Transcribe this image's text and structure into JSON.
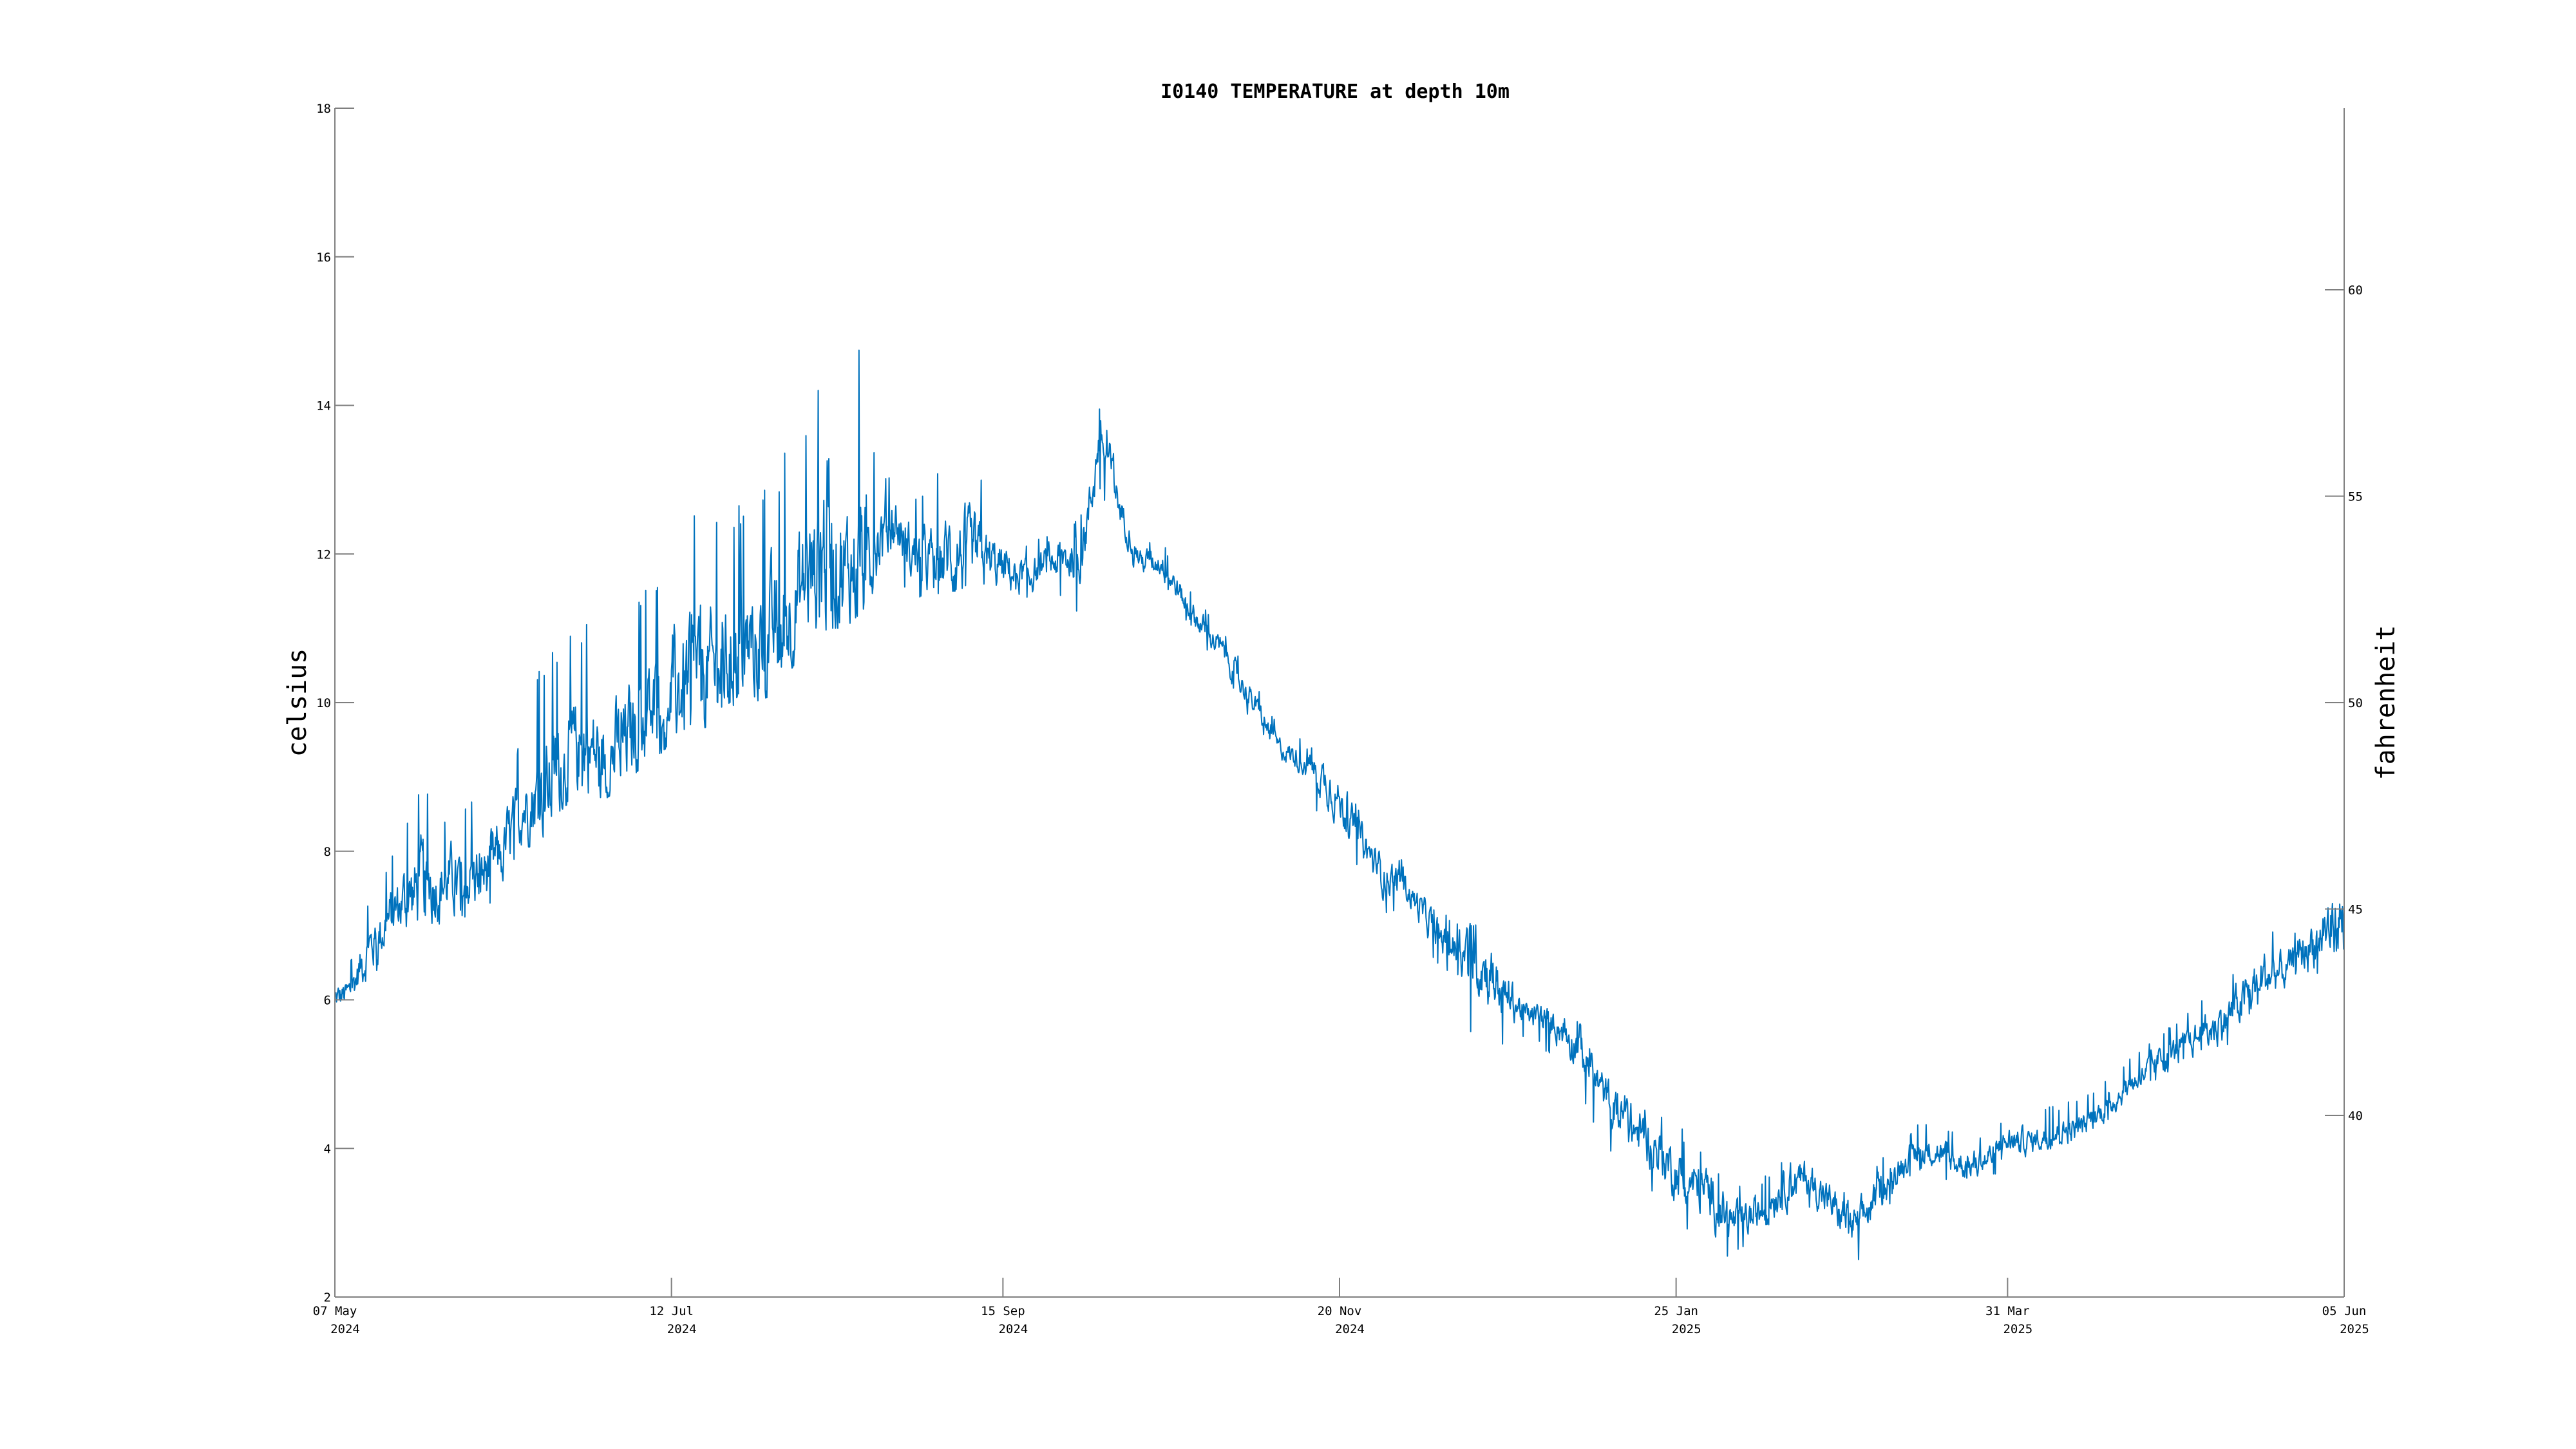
{
  "chart_data": {
    "type": "line",
    "title": "I0140 TEMPERATURE at depth 10m",
    "ylabel": "celsius",
    "y2label": "fahrenheit",
    "xlim": [
      "2024-05-07",
      "2025-06-05"
    ],
    "ylim": [
      2,
      18
    ],
    "y2lim": [
      35.6,
      64.4
    ],
    "grid": false,
    "legend": "none",
    "line_color": "#0072BD",
    "x_ticks": [
      {
        "date": "2024-05-07",
        "line1": "07 May",
        "line2": "2024"
      },
      {
        "date": "2024-07-12",
        "line1": "12 Jul",
        "line2": "2024"
      },
      {
        "date": "2024-09-15",
        "line1": "15 Sep",
        "line2": "2024"
      },
      {
        "date": "2024-11-20",
        "line1": "20 Nov",
        "line2": "2024"
      },
      {
        "date": "2025-01-25",
        "line1": "25 Jan",
        "line2": "2025"
      },
      {
        "date": "2025-03-31",
        "line1": "31 Mar",
        "line2": "2025"
      },
      {
        "date": "2025-06-05",
        "line1": "05 Jun",
        "line2": "2025"
      }
    ],
    "y_ticks": [
      2,
      4,
      6,
      8,
      10,
      12,
      14,
      16,
      18
    ],
    "y2_ticks": [
      40,
      45,
      50,
      55,
      60
    ],
    "series": [
      {
        "x": [
          "2024-05-07",
          "2024-05-10",
          "2024-05-13",
          "2024-05-17",
          "2024-05-20",
          "2024-05-24",
          "2024-05-28",
          "2024-06-01",
          "2024-06-05",
          "2024-06-09",
          "2024-06-13",
          "2024-06-17",
          "2024-06-21",
          "2024-06-25",
          "2024-06-29",
          "2024-07-03",
          "2024-07-07",
          "2024-07-12",
          "2024-07-16",
          "2024-07-20",
          "2024-07-24",
          "2024-07-28",
          "2024-08-01",
          "2024-08-05",
          "2024-08-09",
          "2024-08-12",
          "2024-08-15",
          "2024-08-18",
          "2024-08-21",
          "2024-08-25",
          "2024-08-28",
          "2024-09-01",
          "2024-09-05",
          "2024-09-09",
          "2024-09-15",
          "2024-09-20",
          "2024-09-25",
          "2024-09-30",
          "2024-10-02",
          "2024-10-04",
          "2024-10-06",
          "2024-10-08",
          "2024-10-12",
          "2024-10-16",
          "2024-10-22",
          "2024-10-28",
          "2024-11-03",
          "2024-11-08",
          "2024-11-13",
          "2024-11-18",
          "2024-11-22",
          "2024-11-28",
          "2024-12-02",
          "2024-12-07",
          "2024-12-12",
          "2024-12-17",
          "2024-12-22",
          "2024-12-27",
          "2025-01-01",
          "2025-01-06",
          "2025-01-11",
          "2025-01-16",
          "2025-01-21",
          "2025-01-26",
          "2025-01-31",
          "2025-02-05",
          "2025-02-10",
          "2025-02-15",
          "2025-02-20",
          "2025-02-25",
          "2025-03-01",
          "2025-03-06",
          "2025-03-11",
          "2025-03-16",
          "2025-03-21",
          "2025-03-26",
          "2025-03-31",
          "2025-04-05",
          "2025-04-10",
          "2025-04-15",
          "2025-04-20",
          "2025-04-25",
          "2025-04-30",
          "2025-05-05",
          "2025-05-10",
          "2025-05-15",
          "2025-05-20",
          "2025-05-25",
          "2025-05-30",
          "2025-06-05"
        ],
        "y": [
          6.0,
          6.1,
          6.6,
          7.0,
          7.3,
          7.5,
          7.6,
          7.6,
          7.7,
          8.0,
          8.6,
          8.8,
          9.2,
          9.4,
          9.2,
          9.5,
          9.8,
          10.1,
          10.3,
          10.4,
          10.6,
          10.8,
          10.9,
          11.3,
          11.8,
          12.3,
          11.7,
          11.9,
          12.2,
          12.4,
          12.0,
          11.9,
          12.0,
          12.0,
          11.8,
          11.7,
          11.9,
          12.0,
          12.6,
          13.6,
          13.2,
          12.6,
          11.9,
          11.9,
          11.2,
          10.7,
          10.0,
          9.4,
          9.2,
          8.9,
          8.4,
          7.7,
          7.6,
          7.1,
          6.7,
          6.6,
          6.1,
          5.8,
          5.7,
          5.4,
          4.7,
          4.3,
          4.0,
          3.6,
          3.4,
          3.0,
          3.1,
          3.5,
          3.6,
          3.2,
          2.9,
          3.4,
          3.9,
          4.0,
          3.8,
          3.8,
          4.1,
          4.1,
          4.2,
          4.3,
          4.6,
          4.9,
          5.2,
          5.4,
          5.6,
          5.9,
          6.3,
          6.4,
          6.8,
          7.1
        ],
        "y_min": [
          5.7,
          5.8,
          6.1,
          6.5,
          6.8,
          7.0,
          7.0,
          7.1,
          7.2,
          7.4,
          8.0,
          8.2,
          8.6,
          8.8,
          8.7,
          8.9,
          9.2,
          9.4,
          9.6,
          9.7,
          9.9,
          10.0,
          10.1,
          10.5,
          10.9,
          11.0,
          11.0,
          11.2,
          11.4,
          11.6,
          11.4,
          11.4,
          11.5,
          11.5,
          11.4,
          11.4,
          11.5,
          11.2,
          12.0,
          12.8,
          12.6,
          12.2,
          11.6,
          11.6,
          10.9,
          10.4,
          9.7,
          9.2,
          8.9,
          8.1,
          7.9,
          7.0,
          7.2,
          6.7,
          6.2,
          5.1,
          5.3,
          5.5,
          5.2,
          4.6,
          4.0,
          3.5,
          3.4,
          3.0,
          2.6,
          2.5,
          2.7,
          2.9,
          3.1,
          2.8,
          2.3,
          3.0,
          3.6,
          3.7,
          3.5,
          3.5,
          3.8,
          3.9,
          4.0,
          4.1,
          4.4,
          4.7,
          4.9,
          5.2,
          5.2,
          5.5,
          5.9,
          6.0,
          6.3,
          6.6
        ],
        "y_max": [
          6.4,
          6.5,
          7.3,
          7.8,
          8.3,
          9.2,
          8.6,
          8.6,
          8.9,
          9.0,
          9.6,
          10.7,
          10.9,
          11.2,
          11.0,
          11.3,
          11.6,
          12.1,
          12.9,
          12.5,
          12.7,
          12.9,
          13.1,
          13.6,
          14.2,
          16.1,
          14.0,
          15.2,
          13.3,
          13.0,
          12.7,
          12.9,
          13.7,
          13.3,
          12.5,
          12.2,
          12.4,
          12.5,
          13.3,
          14.0,
          13.6,
          13.0,
          12.2,
          12.2,
          11.5,
          11.0,
          10.3,
          9.7,
          9.5,
          9.2,
          8.8,
          8.0,
          7.9,
          7.5,
          7.1,
          7.0,
          6.5,
          6.1,
          6.0,
          5.7,
          5.0,
          4.7,
          4.5,
          4.3,
          3.9,
          3.5,
          3.6,
          3.9,
          4.0,
          3.7,
          3.3,
          3.9,
          4.3,
          4.4,
          4.2,
          4.2,
          4.5,
          4.5,
          4.6,
          4.7,
          5.0,
          5.3,
          5.6,
          5.8,
          6.2,
          6.5,
          7.2,
          6.8,
          7.6,
          8.5
        ]
      }
    ]
  }
}
